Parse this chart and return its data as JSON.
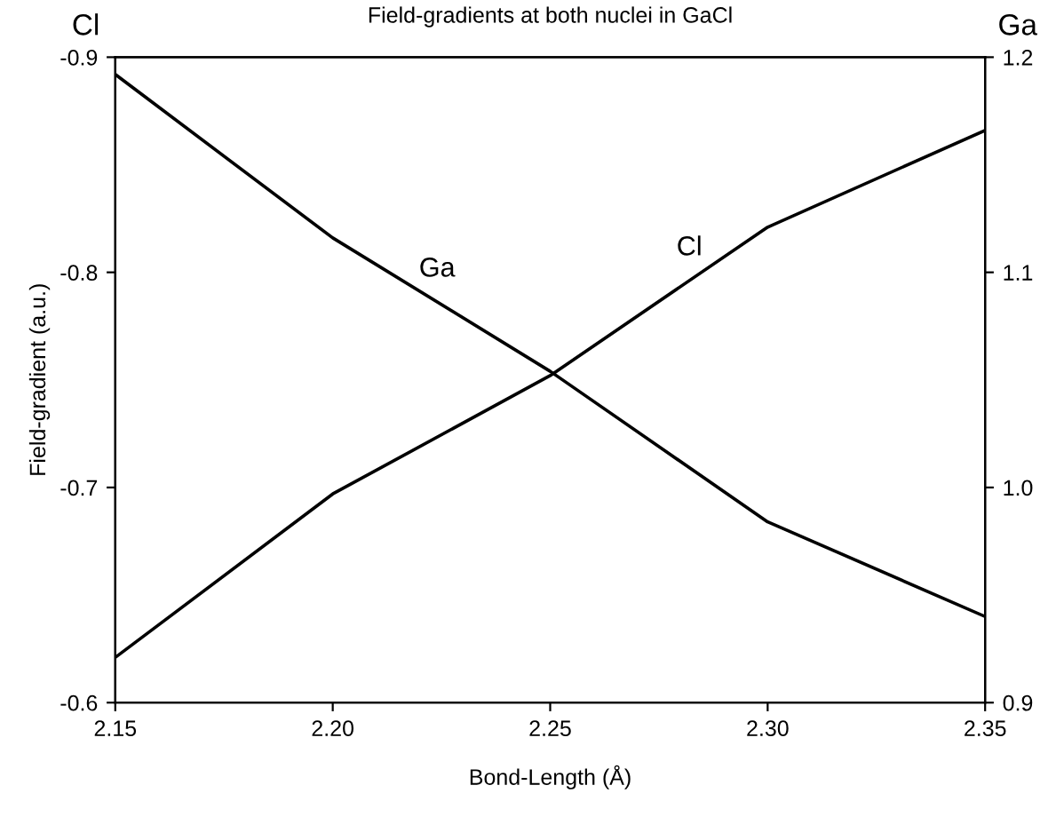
{
  "chart_data": {
    "type": "line",
    "title": "Field-gradients at both nuclei in GaCl",
    "xlabel": "Bond-Length (Å)",
    "ylabel": "Field-gradient (a.u.)",
    "annotations": [
      "Cl",
      "Ga"
    ],
    "x": [
      2.15,
      2.2,
      2.25,
      2.3,
      2.35
    ],
    "series": [
      {
        "name": "Ga",
        "color": "#000000",
        "axis": "y2",
        "values": [
          1.192,
          1.116,
          1.054,
          0.984,
          0.94
        ]
      },
      {
        "name": "Cl",
        "color": "#000000",
        "values": [
          -0.621,
          -0.697,
          -0.752,
          -0.821,
          -0.866
        ]
      }
    ],
    "xlim": [
      2.15,
      2.35
    ],
    "xticks": [
      {
        "value": 2.15,
        "label": "2.15"
      },
      {
        "value": 2.2,
        "label": "2.20"
      },
      {
        "value": 2.25,
        "label": "2.25"
      },
      {
        "value": 2.3,
        "label": "2.30"
      },
      {
        "value": 2.35,
        "label": "2.35"
      }
    ],
    "ylim": [
      -0.6,
      -0.9
    ],
    "yticks": [
      -0.9,
      -0.8,
      -0.7,
      -0.6
    ],
    "y2lim": [
      0.9,
      1.2
    ],
    "y2ticks": [
      0.9,
      {
        "value": 1.0,
        "label": "1.0"
      },
      1.1,
      1.2
    ],
    "grid": false,
    "legend": false,
    "marker": "none",
    "line_style": "solid"
  }
}
